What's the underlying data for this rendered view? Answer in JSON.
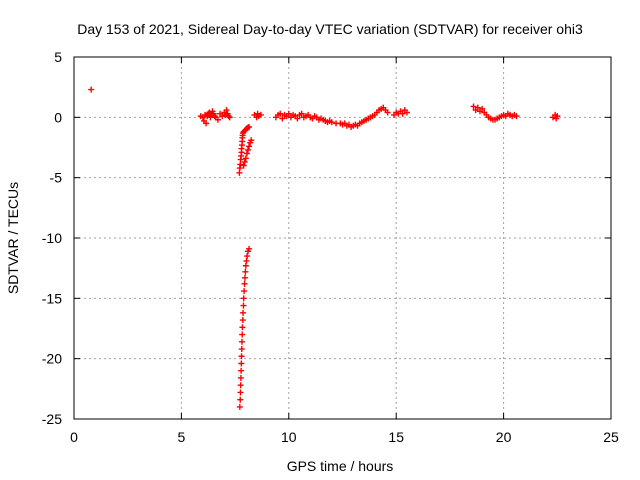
{
  "chart_data": {
    "type": "scatter",
    "title": "Day 153 of 2021, Sidereal Day-to-day VTEC variation (SDTVAR) for receiver ohi3",
    "xlabel": "GPS time / hours",
    "ylabel": "SDTVAR / TECUs",
    "xlim": [
      0,
      25
    ],
    "ylim": [
      -25,
      5
    ],
    "xticks": [
      "0",
      "5",
      "10",
      "15",
      "20",
      "25"
    ],
    "yticks": [
      "5",
      "0",
      "-5",
      "-10",
      "-15",
      "-20",
      "-25"
    ],
    "grid": true,
    "marker": "+",
    "color": "#ff0000",
    "series": [
      {
        "name": "SDTVAR",
        "points": [
          [
            0.8,
            2.3
          ],
          [
            5.9,
            0.1
          ],
          [
            6.0,
            0.0
          ],
          [
            6.05,
            -0.3
          ],
          [
            6.1,
            0.2
          ],
          [
            6.15,
            -0.5
          ],
          [
            6.2,
            0.1
          ],
          [
            6.25,
            0.3
          ],
          [
            6.3,
            0.4
          ],
          [
            6.35,
            0.0
          ],
          [
            6.4,
            0.2
          ],
          [
            6.45,
            0.5
          ],
          [
            6.5,
            0.3
          ],
          [
            6.55,
            0.1
          ],
          [
            6.6,
            0.0
          ],
          [
            6.7,
            -0.2
          ],
          [
            6.8,
            0.3
          ],
          [
            6.9,
            0.1
          ],
          [
            7.0,
            0.4
          ],
          [
            7.05,
            0.2
          ],
          [
            7.1,
            0.6
          ],
          [
            7.15,
            0.3
          ],
          [
            7.2,
            0.1
          ],
          [
            7.25,
            0.0
          ],
          [
            7.7,
            -4.6
          ],
          [
            7.72,
            -4.2
          ],
          [
            7.74,
            -3.9
          ],
          [
            7.76,
            -3.5
          ],
          [
            7.78,
            -3.2
          ],
          [
            7.8,
            -2.9
          ],
          [
            7.8,
            -2.6
          ],
          [
            7.82,
            -2.3
          ],
          [
            7.83,
            -2.0
          ],
          [
            7.84,
            -1.7
          ],
          [
            7.85,
            -1.5
          ],
          [
            7.87,
            -1.3
          ],
          [
            7.9,
            -1.2
          ],
          [
            7.95,
            -1.1
          ],
          [
            8.0,
            -1.0
          ],
          [
            8.05,
            -0.9
          ],
          [
            8.1,
            -0.85
          ],
          [
            8.15,
            -0.8
          ],
          [
            7.9,
            -4.0
          ],
          [
            7.95,
            -3.7
          ],
          [
            8.0,
            -3.4
          ],
          [
            8.05,
            -3.0
          ],
          [
            8.1,
            -2.7
          ],
          [
            8.15,
            -2.4
          ],
          [
            8.2,
            -2.1
          ],
          [
            8.25,
            -1.9
          ],
          [
            7.72,
            -24.0
          ],
          [
            7.74,
            -23.4
          ],
          [
            7.75,
            -22.8
          ],
          [
            7.76,
            -22.2
          ],
          [
            7.77,
            -21.6
          ],
          [
            7.78,
            -21.0
          ],
          [
            7.79,
            -20.4
          ],
          [
            7.8,
            -19.8
          ],
          [
            7.81,
            -19.2
          ],
          [
            7.82,
            -18.6
          ],
          [
            7.83,
            -18.0
          ],
          [
            7.84,
            -17.4
          ],
          [
            7.86,
            -16.8
          ],
          [
            7.87,
            -16.2
          ],
          [
            7.89,
            -15.6
          ],
          [
            7.9,
            -15.0
          ],
          [
            7.92,
            -14.4
          ],
          [
            7.94,
            -13.8
          ],
          [
            7.96,
            -13.3
          ],
          [
            7.98,
            -12.8
          ],
          [
            8.0,
            -12.3
          ],
          [
            8.03,
            -11.9
          ],
          [
            8.06,
            -11.5
          ],
          [
            8.1,
            -11.1
          ],
          [
            8.15,
            -10.9
          ],
          [
            8.4,
            0.2
          ],
          [
            8.5,
            0.0
          ],
          [
            8.55,
            0.3
          ],
          [
            8.6,
            0.1
          ],
          [
            8.7,
            0.2
          ],
          [
            9.4,
            0.0
          ],
          [
            9.5,
            0.2
          ],
          [
            9.6,
            0.3
          ],
          [
            9.7,
            -0.1
          ],
          [
            9.8,
            0.2
          ],
          [
            9.9,
            0.1
          ],
          [
            10.0,
            0.3
          ],
          [
            10.1,
            0.0
          ],
          [
            10.2,
            0.2
          ],
          [
            10.3,
            0.1
          ],
          [
            10.4,
            -0.1
          ],
          [
            10.5,
            0.2
          ],
          [
            10.6,
            0.3
          ],
          [
            10.7,
            0.0
          ],
          [
            10.8,
            0.1
          ],
          [
            10.9,
            0.2
          ],
          [
            11.0,
            0.0
          ],
          [
            11.1,
            -0.1
          ],
          [
            11.2,
            0.1
          ],
          [
            11.3,
            0.0
          ],
          [
            11.4,
            -0.2
          ],
          [
            11.5,
            -0.1
          ],
          [
            11.6,
            -0.2
          ],
          [
            11.7,
            -0.3
          ],
          [
            11.8,
            -0.4
          ],
          [
            11.9,
            -0.3
          ],
          [
            12.0,
            -0.4
          ],
          [
            12.2,
            -0.5
          ],
          [
            12.4,
            -0.5
          ],
          [
            12.5,
            -0.6
          ],
          [
            12.6,
            -0.5
          ],
          [
            12.7,
            -0.7
          ],
          [
            12.8,
            -0.6
          ],
          [
            12.9,
            -0.8
          ],
          [
            13.0,
            -0.7
          ],
          [
            13.1,
            -0.6
          ],
          [
            13.2,
            -0.7
          ],
          [
            13.3,
            -0.5
          ],
          [
            13.4,
            -0.4
          ],
          [
            13.5,
            -0.3
          ],
          [
            13.6,
            -0.2
          ],
          [
            13.7,
            -0.1
          ],
          [
            13.8,
            0.0
          ],
          [
            13.9,
            0.1
          ],
          [
            14.0,
            0.2
          ],
          [
            14.1,
            0.4
          ],
          [
            14.2,
            0.6
          ],
          [
            14.3,
            0.7
          ],
          [
            14.4,
            0.8
          ],
          [
            14.5,
            0.6
          ],
          [
            14.6,
            0.4
          ],
          [
            14.9,
            0.2
          ],
          [
            15.0,
            0.4
          ],
          [
            15.1,
            0.3
          ],
          [
            15.2,
            0.5
          ],
          [
            15.3,
            0.3
          ],
          [
            15.4,
            0.6
          ],
          [
            15.5,
            0.4
          ],
          [
            18.6,
            0.9
          ],
          [
            18.7,
            0.6
          ],
          [
            18.8,
            0.8
          ],
          [
            18.9,
            0.5
          ],
          [
            19.0,
            0.7
          ],
          [
            19.1,
            0.4
          ],
          [
            19.2,
            0.2
          ],
          [
            19.3,
            0.0
          ],
          [
            19.4,
            -0.1
          ],
          [
            19.5,
            -0.2
          ],
          [
            19.6,
            -0.2
          ],
          [
            19.7,
            -0.1
          ],
          [
            19.8,
            0.0
          ],
          [
            19.9,
            0.1
          ],
          [
            20.0,
            0.2
          ],
          [
            20.1,
            0.1
          ],
          [
            20.2,
            0.3
          ],
          [
            20.3,
            0.2
          ],
          [
            20.4,
            0.1
          ],
          [
            20.5,
            0.2
          ],
          [
            20.6,
            0.1
          ],
          [
            22.3,
            0.0
          ],
          [
            22.4,
            0.2
          ],
          [
            22.45,
            -0.1
          ],
          [
            22.5,
            0.1
          ]
        ]
      }
    ]
  }
}
